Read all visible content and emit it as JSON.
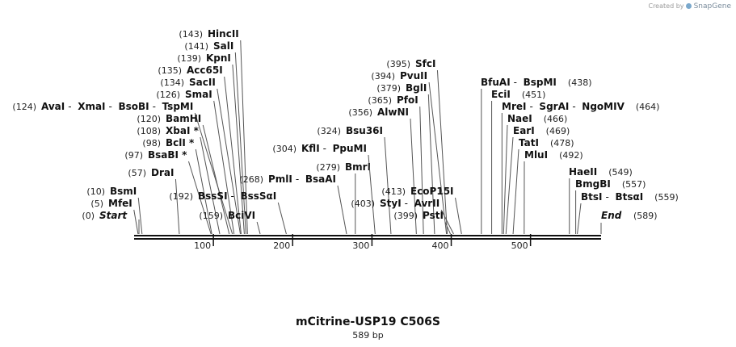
{
  "credit": {
    "prefix": "Created by",
    "brand": "SnapGene",
    "logo_icon": "snapgene-logo-icon"
  },
  "title": "mCitrine-USP19 C506S",
  "subtitle": "589 bp",
  "map": {
    "length": 589,
    "ticks": [
      100,
      200,
      300,
      400,
      500
    ],
    "ends": [
      {
        "label": "Start",
        "pos": "(0)",
        "bp": 0
      },
      {
        "label": "End",
        "pos": "(589)",
        "bp": 589
      }
    ],
    "sites": [
      {
        "pos": "(143)",
        "names": [
          "HincII"
        ],
        "bp": 143
      },
      {
        "pos": "(141)",
        "names": [
          "SalI"
        ],
        "bp": 141
      },
      {
        "pos": "(139)",
        "names": [
          "KpnI"
        ],
        "bp": 139
      },
      {
        "pos": "(135)",
        "names": [
          "Acc65I"
        ],
        "bp": 135
      },
      {
        "pos": "(134)",
        "names": [
          "SacII"
        ],
        "bp": 134
      },
      {
        "pos": "(126)",
        "names": [
          "SmaI"
        ],
        "bp": 126
      },
      {
        "pos": "(124)",
        "names": [
          "AvaI",
          "XmaI",
          "BsoBI",
          "TspMI"
        ],
        "bp": 124
      },
      {
        "pos": "(120)",
        "names": [
          "BamHI"
        ],
        "bp": 120
      },
      {
        "pos": "(108)",
        "names": [
          "XbaI *"
        ],
        "bp": 108
      },
      {
        "pos": "(98)",
        "names": [
          "BclI *"
        ],
        "bp": 98
      },
      {
        "pos": "(97)",
        "names": [
          "BsaBI *"
        ],
        "bp": 97
      },
      {
        "pos": "(57)",
        "names": [
          "DraI"
        ],
        "bp": 57
      },
      {
        "pos": "(10)",
        "names": [
          "BsmI"
        ],
        "bp": 10
      },
      {
        "pos": "(5)",
        "names": [
          "MfeI"
        ],
        "bp": 5
      },
      {
        "pos": "(192)",
        "names": [
          "BssSI",
          "BssSαI"
        ],
        "bp": 192
      },
      {
        "pos": "(159)",
        "names": [
          "BciVI"
        ],
        "bp": 159
      },
      {
        "pos": "(268)",
        "names": [
          "PmlI",
          "BsaAI"
        ],
        "bp": 268
      },
      {
        "pos": "(279)",
        "names": [
          "BmrI"
        ],
        "bp": 279
      },
      {
        "pos": "(304)",
        "names": [
          "KflI",
          "PpuMI"
        ],
        "bp": 304
      },
      {
        "pos": "(324)",
        "names": [
          "Bsu36I"
        ],
        "bp": 324
      },
      {
        "pos": "(356)",
        "names": [
          "AlwNI"
        ],
        "bp": 356
      },
      {
        "pos": "(365)",
        "names": [
          "PfoI"
        ],
        "bp": 365
      },
      {
        "pos": "(379)",
        "names": [
          "BglI"
        ],
        "bp": 379
      },
      {
        "pos": "(394)",
        "names": [
          "PvuII"
        ],
        "bp": 394
      },
      {
        "pos": "(395)",
        "names": [
          "SfcI"
        ],
        "bp": 395
      },
      {
        "pos": "(413)",
        "names": [
          "EcoP15I"
        ],
        "bp": 413
      },
      {
        "pos": "(403)",
        "names": [
          "StyI",
          "AvrII"
        ],
        "bp": 403
      },
      {
        "pos": "(399)",
        "names": [
          "PstI"
        ],
        "bp": 399
      },
      {
        "pos": "(438)",
        "names": [
          "BfuAI",
          "BspMI"
        ],
        "bp": 438
      },
      {
        "pos": "(451)",
        "names": [
          "EciI"
        ],
        "bp": 451
      },
      {
        "pos": "(464)",
        "names": [
          "MreI",
          "SgrAI",
          "NgoMIV"
        ],
        "bp": 464
      },
      {
        "pos": "(466)",
        "names": [
          "NaeI"
        ],
        "bp": 466
      },
      {
        "pos": "(469)",
        "names": [
          "EarI"
        ],
        "bp": 469
      },
      {
        "pos": "(478)",
        "names": [
          "TatI"
        ],
        "bp": 478
      },
      {
        "pos": "(492)",
        "names": [
          "MluI"
        ],
        "bp": 492
      },
      {
        "pos": "(549)",
        "names": [
          "HaeII"
        ],
        "bp": 549
      },
      {
        "pos": "(557)",
        "names": [
          "BmgBI"
        ],
        "bp": 557
      },
      {
        "pos": "(559)",
        "names": [
          "BtsI",
          "BtsαI"
        ],
        "bp": 559
      }
    ]
  }
}
